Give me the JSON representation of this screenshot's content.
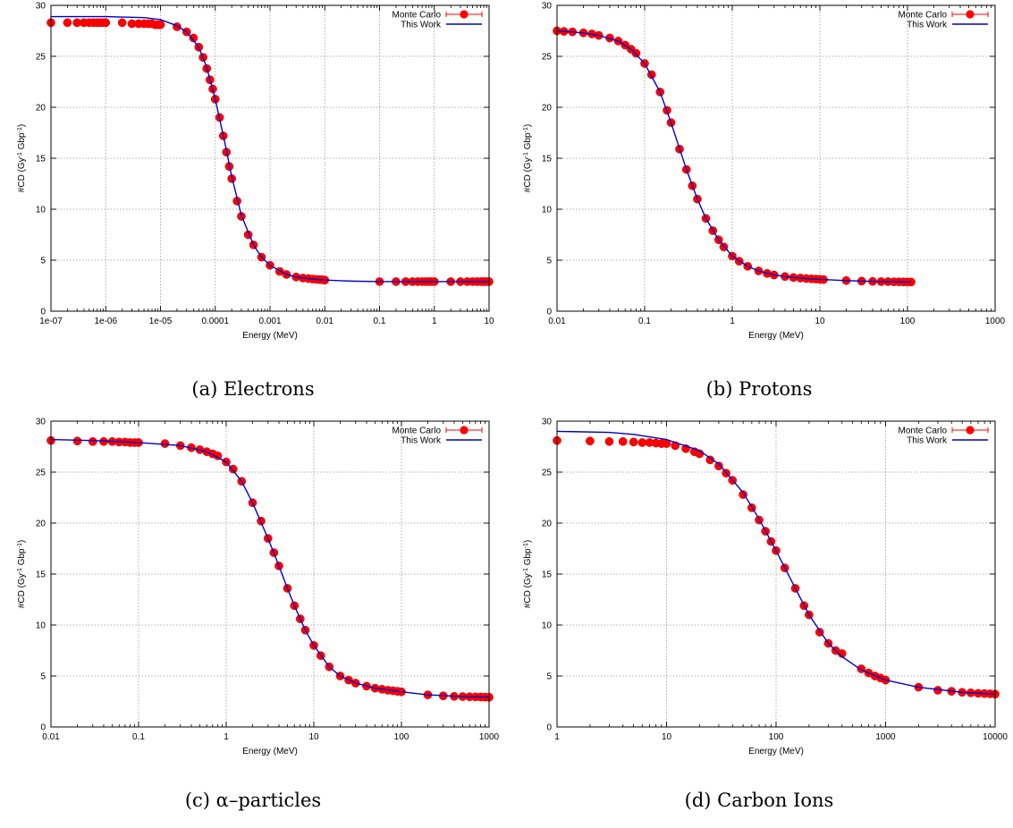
{
  "chart_data": [
    {
      "type": "scatter",
      "caption": "(a) Electrons",
      "xlabel": "Energy (MeV)",
      "ylabel_main": "#CD (Gy",
      "ylabel_sup1": "-1",
      "ylabel_mid": " Gbp",
      "ylabel_sup2": "-1",
      "ylabel_end": ")",
      "xscale": "log",
      "xlim": [
        1e-07,
        10
      ],
      "ylim": [
        0,
        30
      ],
      "xticks": [
        1e-07,
        1e-06,
        1e-05,
        0.0001,
        0.001,
        0.01,
        0.1,
        1,
        10
      ],
      "xtick_labels": [
        "1e-07",
        "1e-06",
        "1e-05",
        "0.0001",
        "0.001",
        "0.01",
        "0.1",
        "1",
        "10"
      ],
      "yticks": [
        0,
        5,
        10,
        15,
        20,
        25,
        30
      ],
      "ytick_labels": [
        "0",
        "5",
        "10",
        "15",
        "20",
        "25",
        "30"
      ],
      "grid": true,
      "legend_position": "top-right",
      "legend": [
        "Monte Carlo",
        "This Work"
      ],
      "series": [
        {
          "name": "Monte Carlo",
          "kind": "points",
          "color": "#ff0000",
          "x": [
            1e-07,
            2e-07,
            3e-07,
            4e-07,
            5e-07,
            6e-07,
            7e-07,
            8e-07,
            9e-07,
            1e-06,
            2e-06,
            3e-06,
            4e-06,
            5e-06,
            6e-06,
            7e-06,
            8e-06,
            9e-06,
            1e-05,
            2e-05,
            3e-05,
            4e-05,
            5e-05,
            6e-05,
            7e-05,
            8e-05,
            9e-05,
            0.0001,
            0.00012,
            0.00014,
            0.00016,
            0.00018,
            0.0002,
            0.00025,
            0.0003,
            0.0004,
            0.0005,
            0.0007,
            0.001,
            0.0015,
            0.002,
            0.003,
            0.004,
            0.005,
            0.006,
            0.007,
            0.008,
            0.009,
            0.01,
            0.1,
            0.2,
            0.3,
            0.4,
            0.5,
            0.6,
            0.7,
            0.8,
            0.9,
            1,
            2,
            3,
            4,
            5,
            6,
            7,
            8,
            9,
            10
          ],
          "y": [
            28.3,
            28.3,
            28.3,
            28.3,
            28.3,
            28.3,
            28.3,
            28.3,
            28.3,
            28.3,
            28.3,
            28.2,
            28.2,
            28.2,
            28.2,
            28.2,
            28.1,
            28.1,
            28.1,
            27.9,
            27.4,
            26.8,
            25.9,
            24.9,
            23.8,
            22.7,
            21.8,
            20.8,
            19.0,
            17.2,
            15.6,
            14.2,
            13.0,
            10.8,
            9.3,
            7.5,
            6.5,
            5.3,
            4.5,
            3.9,
            3.6,
            3.35,
            3.25,
            3.2,
            3.15,
            3.12,
            3.1,
            3.08,
            3.05,
            2.9,
            2.9,
            2.9,
            2.9,
            2.9,
            2.9,
            2.9,
            2.9,
            2.9,
            2.9,
            2.9,
            2.9,
            2.9,
            2.9,
            2.9,
            2.9,
            2.9,
            2.9,
            2.9
          ]
        },
        {
          "name": "This Work",
          "kind": "line",
          "color": "#0000cc",
          "x": [
            1e-07,
            1e-06,
            5e-06,
            1e-05,
            2e-05,
            3e-05,
            5e-05,
            7e-05,
            0.0001,
            0.00015,
            0.0002,
            0.0003,
            0.0005,
            0.0007,
            0.001,
            0.002,
            0.003,
            0.005,
            0.01,
            0.03,
            0.1,
            1,
            10
          ],
          "y": [
            28.9,
            28.9,
            28.8,
            28.6,
            28.0,
            27.4,
            25.9,
            23.9,
            20.8,
            16.5,
            13.2,
            9.4,
            6.5,
            5.3,
            4.5,
            3.6,
            3.35,
            3.2,
            3.05,
            2.95,
            2.9,
            2.9,
            2.9
          ]
        }
      ]
    },
    {
      "type": "scatter",
      "caption": "(b) Protons",
      "xlabel": "Energy (MeV)",
      "ylabel_main": "#CD (Gy",
      "ylabel_sup1": "-1",
      "ylabel_mid": " Gbp",
      "ylabel_sup2": "-1",
      "ylabel_end": ")",
      "xscale": "log",
      "xlim": [
        0.01,
        1000
      ],
      "ylim": [
        0,
        30
      ],
      "xticks": [
        0.01,
        0.1,
        1,
        10,
        100,
        1000
      ],
      "xtick_labels": [
        "0.01",
        "0.1",
        "1",
        "10",
        "100",
        "1000"
      ],
      "yticks": [
        0,
        5,
        10,
        15,
        20,
        25,
        30
      ],
      "ytick_labels": [
        "0",
        "5",
        "10",
        "15",
        "20",
        "25",
        "30"
      ],
      "grid": true,
      "legend_position": "top-right",
      "legend": [
        "Monte Carlo",
        "This Work"
      ],
      "series": [
        {
          "name": "Monte Carlo",
          "kind": "points",
          "color": "#ff0000",
          "x": [
            0.01,
            0.012,
            0.015,
            0.02,
            0.025,
            0.03,
            0.04,
            0.05,
            0.06,
            0.07,
            0.08,
            0.1,
            0.12,
            0.15,
            0.18,
            0.2,
            0.25,
            0.3,
            0.35,
            0.4,
            0.5,
            0.6,
            0.7,
            0.8,
            1,
            1.2,
            1.5,
            2,
            2.5,
            3,
            4,
            5,
            6,
            7,
            8,
            9,
            10,
            11,
            20,
            30,
            40,
            50,
            60,
            70,
            80,
            90,
            100,
            110
          ],
          "y": [
            27.5,
            27.45,
            27.4,
            27.3,
            27.2,
            27.05,
            26.8,
            26.5,
            26.1,
            25.7,
            25.3,
            24.3,
            23.2,
            21.5,
            19.7,
            18.5,
            15.9,
            13.9,
            12.3,
            11.0,
            9.1,
            7.9,
            7.0,
            6.3,
            5.4,
            4.9,
            4.4,
            3.95,
            3.7,
            3.55,
            3.4,
            3.3,
            3.25,
            3.2,
            3.17,
            3.15,
            3.12,
            3.1,
            3.0,
            2.95,
            2.92,
            2.9,
            2.9,
            2.88,
            2.88,
            2.87,
            2.86,
            2.86
          ]
        },
        {
          "name": "This Work",
          "kind": "line",
          "color": "#0000cc",
          "x": [
            0.01,
            0.02,
            0.03,
            0.05,
            0.07,
            0.1,
            0.15,
            0.2,
            0.3,
            0.4,
            0.5,
            0.7,
            1,
            1.5,
            2,
            3,
            5,
            7,
            10,
            20,
            30,
            50,
            110
          ],
          "y": [
            27.5,
            27.3,
            27.05,
            26.5,
            25.7,
            24.3,
            21.5,
            18.5,
            13.9,
            11.0,
            9.1,
            7.0,
            5.4,
            4.4,
            3.95,
            3.55,
            3.3,
            3.2,
            3.12,
            3.0,
            2.95,
            2.9,
            2.86
          ]
        }
      ]
    },
    {
      "type": "scatter",
      "caption": "(c) α–particles",
      "xlabel": "Energy (MeV)",
      "ylabel_main": "#CD (Gy",
      "ylabel_sup1": "-1",
      "ylabel_mid": " Gbp",
      "ylabel_sup2": "-1",
      "ylabel_end": ")",
      "xscale": "log",
      "xlim": [
        0.01,
        1000
      ],
      "ylim": [
        0,
        30
      ],
      "xticks": [
        0.01,
        0.1,
        1,
        10,
        100,
        1000
      ],
      "xtick_labels": [
        "0.01",
        "0.1",
        "1",
        "10",
        "100",
        "1000"
      ],
      "yticks": [
        0,
        5,
        10,
        15,
        20,
        25,
        30
      ],
      "ytick_labels": [
        "0",
        "5",
        "10",
        "15",
        "20",
        "25",
        "30"
      ],
      "grid": true,
      "legend_position": "top-right",
      "legend": [
        "Monte Carlo",
        "This Work"
      ],
      "series": [
        {
          "name": "Monte Carlo",
          "kind": "points",
          "color": "#ff0000",
          "x": [
            0.01,
            0.02,
            0.03,
            0.04,
            0.05,
            0.06,
            0.07,
            0.08,
            0.09,
            0.1,
            0.2,
            0.3,
            0.4,
            0.5,
            0.6,
            0.7,
            0.8,
            1,
            1.2,
            1.5,
            2,
            2.5,
            3,
            3.5,
            4,
            5,
            6,
            7,
            8,
            10,
            12,
            15,
            20,
            25,
            30,
            40,
            50,
            60,
            70,
            80,
            90,
            100,
            200,
            300,
            400,
            500,
            600,
            700,
            800,
            900,
            1000
          ],
          "y": [
            28.1,
            28.05,
            28.0,
            28.0,
            28.0,
            27.95,
            27.95,
            27.9,
            27.9,
            27.9,
            27.8,
            27.6,
            27.4,
            27.2,
            27.0,
            26.8,
            26.6,
            26.0,
            25.3,
            24.1,
            22.0,
            20.2,
            18.5,
            17.1,
            15.8,
            13.6,
            11.9,
            10.6,
            9.5,
            8.0,
            7.0,
            5.9,
            5.0,
            4.6,
            4.3,
            4.0,
            3.8,
            3.7,
            3.6,
            3.55,
            3.5,
            3.45,
            3.15,
            3.05,
            3.0,
            2.98,
            2.96,
            2.95,
            2.94,
            2.93,
            2.92
          ]
        },
        {
          "name": "This Work",
          "kind": "line",
          "color": "#0000cc",
          "x": [
            0.01,
            0.03,
            0.1,
            0.3,
            0.6,
            1,
            1.5,
            2,
            3,
            4,
            5,
            6,
            8,
            10,
            15,
            20,
            30,
            50,
            100,
            200,
            500,
            1000
          ],
          "y": [
            28.2,
            28.1,
            27.9,
            27.6,
            27.0,
            26.0,
            24.1,
            22.0,
            18.5,
            15.8,
            13.6,
            11.9,
            9.5,
            8.0,
            5.9,
            5.0,
            4.3,
            3.8,
            3.45,
            3.15,
            2.98,
            2.92
          ]
        }
      ]
    },
    {
      "type": "scatter",
      "caption": "(d) Carbon Ions",
      "xlabel": "Energy (MeV)",
      "ylabel_main": "#CD (Gy",
      "ylabel_sup1": "-1",
      "ylabel_mid": " Gbp",
      "ylabel_sup2": "-1",
      "ylabel_end": ")",
      "xscale": "log",
      "xlim": [
        1,
        10000
      ],
      "ylim": [
        0,
        30
      ],
      "xticks": [
        1,
        10,
        100,
        1000,
        10000
      ],
      "xtick_labels": [
        "1",
        "10",
        "100",
        "1000",
        "10000"
      ],
      "yticks": [
        0,
        5,
        10,
        15,
        20,
        25,
        30
      ],
      "ytick_labels": [
        "0",
        "5",
        "10",
        "15",
        "20",
        "25",
        "30"
      ],
      "grid": true,
      "legend_position": "top-right",
      "legend": [
        "Monte Carlo",
        "This Work"
      ],
      "series": [
        {
          "name": "Monte Carlo",
          "kind": "points",
          "color": "#ff0000",
          "x": [
            1,
            2,
            3,
            4,
            5,
            6,
            7,
            8,
            9,
            10,
            12,
            15,
            18,
            20,
            25,
            30,
            35,
            40,
            50,
            60,
            70,
            80,
            90,
            100,
            120,
            150,
            180,
            200,
            250,
            300,
            350,
            400,
            600,
            700,
            800,
            900,
            1000,
            2000,
            3000,
            4000,
            5000,
            6000,
            7000,
            8000,
            9000,
            10000
          ],
          "y": [
            28.1,
            28.05,
            28.0,
            28.0,
            27.95,
            27.9,
            27.9,
            27.85,
            27.8,
            27.8,
            27.6,
            27.3,
            27.0,
            26.8,
            26.2,
            25.6,
            24.9,
            24.2,
            22.8,
            21.5,
            20.3,
            19.2,
            18.2,
            17.3,
            15.6,
            13.6,
            11.9,
            11.0,
            9.3,
            8.2,
            7.5,
            7.2,
            5.7,
            5.3,
            5.0,
            4.8,
            4.6,
            3.9,
            3.6,
            3.5,
            3.4,
            3.35,
            3.3,
            3.28,
            3.25,
            3.22
          ]
        },
        {
          "name": "This Work",
          "kind": "line",
          "color": "#0000cc",
          "x": [
            1,
            3,
            5,
            10,
            20,
            30,
            50,
            70,
            100,
            150,
            200,
            300,
            400,
            600,
            1000,
            2000,
            5000,
            10000
          ],
          "y": [
            29.0,
            28.9,
            28.7,
            28.2,
            27.1,
            25.8,
            23.0,
            20.4,
            17.3,
            13.6,
            11.0,
            8.2,
            6.9,
            5.6,
            4.6,
            3.9,
            3.4,
            3.22
          ]
        }
      ]
    }
  ]
}
